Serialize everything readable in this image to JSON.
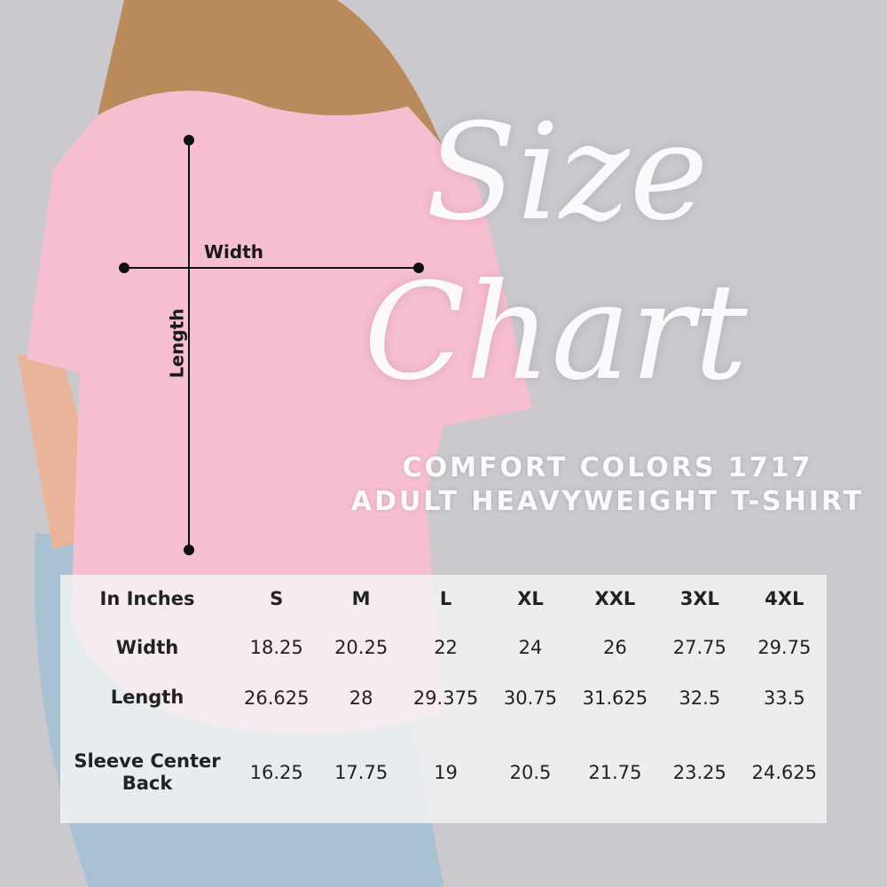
{
  "title_line1": "Size",
  "title_line2": "Chart",
  "subtitle_line1": "COMFORT COLORS 1717",
  "subtitle_line2": "ADULT HEAVYWEIGHT T-SHIRT",
  "diagram": {
    "width_label": "Width",
    "length_label": "Length"
  },
  "colors": {
    "background": "#cbc9ce",
    "shirt": "#f6bfd0",
    "title": "#fbf9fb"
  },
  "table": {
    "headers": [
      "In Inches",
      "S",
      "M",
      "L",
      "XL",
      "XXL",
      "3XL",
      "4XL"
    ],
    "rows": [
      {
        "label": "Width",
        "values": [
          "18.25",
          "20.25",
          "22",
          "24",
          "26",
          "27.75",
          "29.75"
        ]
      },
      {
        "label": "Length",
        "values": [
          "26.625",
          "28",
          "29.375",
          "30.75",
          "31.625",
          "32.5",
          "33.5"
        ]
      },
      {
        "label": "Sleeve Center Back",
        "values": [
          "16.25",
          "17.75",
          "19",
          "20.5",
          "21.75",
          "23.25",
          "24.625"
        ]
      }
    ]
  }
}
